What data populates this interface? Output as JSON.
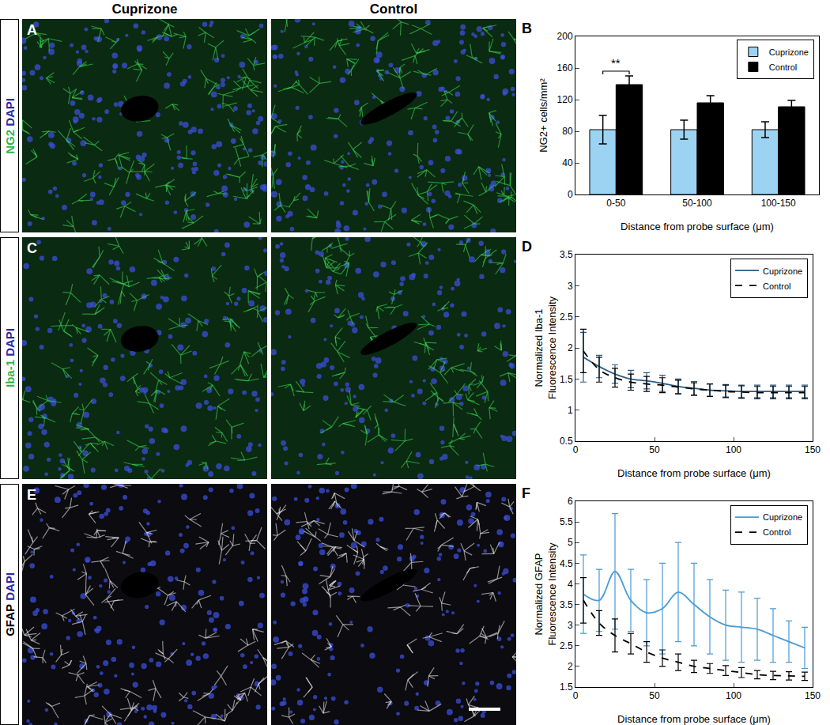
{
  "figure": {
    "column_headers": [
      "Cuprizone",
      "Control"
    ],
    "rows": [
      {
        "panel": "A",
        "labels": [
          {
            "text": "NG2",
            "color": "#2db84b"
          },
          {
            "text": "DAPI",
            "color": "#2a2aa8"
          }
        ]
      },
      {
        "panel": "C",
        "labels": [
          {
            "text": "Iba-1",
            "color": "#2db84b"
          },
          {
            "text": "DAPI",
            "color": "#2a2aa8"
          }
        ]
      },
      {
        "panel": "E",
        "labels": [
          {
            "text": "GFAP",
            "color": "#000000"
          },
          {
            "text": "DAPI",
            "color": "#2a2aa8"
          }
        ]
      }
    ]
  },
  "chart_data": [
    {
      "panel": "B",
      "type": "bar",
      "categories": [
        "0-50",
        "50-100",
        "100-150"
      ],
      "series": [
        {
          "name": "Cuprizone",
          "color": "#9dd3f2",
          "values": [
            82,
            82,
            82
          ],
          "errors": [
            18,
            12,
            10
          ]
        },
        {
          "name": "Control",
          "color": "#000000",
          "values": [
            139,
            116,
            111
          ],
          "errors": [
            11,
            9,
            8
          ]
        }
      ],
      "x_label": "Distance from probe surface (μm)",
      "y_label": [
        "NG2+ cells/mm²"
      ],
      "ylim": [
        0,
        200
      ],
      "yticks": [
        0,
        40,
        80,
        120,
        160,
        200
      ],
      "legend": "top right",
      "annotations": [
        {
          "text": "**",
          "category": "0-50"
        }
      ]
    },
    {
      "panel": "D",
      "type": "line",
      "x": [
        5,
        15,
        25,
        35,
        45,
        55,
        65,
        75,
        85,
        95,
        105,
        115,
        125,
        135,
        145
      ],
      "series": [
        {
          "name": "Cuprizone",
          "color": "#2b5d86",
          "line_style": "solid",
          "values": [
            1.85,
            1.7,
            1.58,
            1.5,
            1.47,
            1.43,
            1.38,
            1.35,
            1.32,
            1.31,
            1.3,
            1.3,
            1.3,
            1.3,
            1.3
          ],
          "errors": [
            0.4,
            0.18,
            0.15,
            0.14,
            0.13,
            0.13,
            0.12,
            0.11,
            0.1,
            0.1,
            0.1,
            0.1,
            0.1,
            0.1,
            0.1
          ]
        },
        {
          "name": "Control",
          "color": "#000000",
          "line_style": "dashed",
          "values": [
            1.95,
            1.65,
            1.52,
            1.45,
            1.42,
            1.4,
            1.37,
            1.34,
            1.32,
            1.3,
            1.29,
            1.28,
            1.28,
            1.28,
            1.28
          ],
          "errors": [
            0.35,
            0.2,
            0.15,
            0.13,
            0.12,
            0.12,
            0.11,
            0.1,
            0.1,
            0.1,
            0.1,
            0.1,
            0.1,
            0.1,
            0.1
          ]
        }
      ],
      "x_label": "Distance from probe surface (μm)",
      "y_label": [
        "Normalized Iba-1",
        "Fluorescence Intensity"
      ],
      "xlim": [
        0,
        150
      ],
      "xticks": [
        0,
        50,
        100,
        150
      ],
      "ylim": [
        0.5,
        3.5
      ],
      "yticks": [
        0.5,
        1,
        1.5,
        2,
        2.5,
        3,
        3.5
      ],
      "legend": "top right"
    },
    {
      "panel": "F",
      "type": "line",
      "x": [
        5,
        15,
        25,
        35,
        45,
        55,
        65,
        75,
        85,
        95,
        105,
        115,
        125,
        135,
        145
      ],
      "series": [
        {
          "name": "Cuprizone",
          "color": "#4a9bd4",
          "line_style": "solid",
          "values": [
            3.75,
            3.6,
            4.3,
            3.6,
            3.3,
            3.4,
            3.8,
            3.5,
            3.2,
            3.0,
            2.95,
            2.9,
            2.75,
            2.6,
            2.45
          ],
          "errors": [
            0.95,
            0.75,
            1.4,
            0.75,
            0.8,
            1.1,
            1.2,
            1.0,
            0.9,
            0.85,
            0.85,
            0.75,
            0.65,
            0.5,
            0.5
          ]
        },
        {
          "name": "Control",
          "color": "#000000",
          "line_style": "dashed",
          "values": [
            3.6,
            3.05,
            2.75,
            2.55,
            2.35,
            2.2,
            2.1,
            2.0,
            1.95,
            1.9,
            1.85,
            1.8,
            1.78,
            1.77,
            1.76
          ],
          "errors": [
            0.55,
            0.3,
            0.4,
            0.25,
            0.25,
            0.2,
            0.2,
            0.15,
            0.12,
            0.12,
            0.12,
            0.1,
            0.1,
            0.1,
            0.1
          ]
        }
      ],
      "x_label": "Distance from probe surface (μm)",
      "y_label": [
        "Normalized GFAP",
        "Fluorescence Intensity"
      ],
      "xlim": [
        0,
        150
      ],
      "xticks": [
        0,
        50,
        100,
        150
      ],
      "ylim": [
        1.5,
        6
      ],
      "yticks": [
        1.5,
        2,
        2.5,
        3,
        3.5,
        4,
        4.5,
        5,
        5.5,
        6
      ],
      "legend": "top right"
    }
  ]
}
